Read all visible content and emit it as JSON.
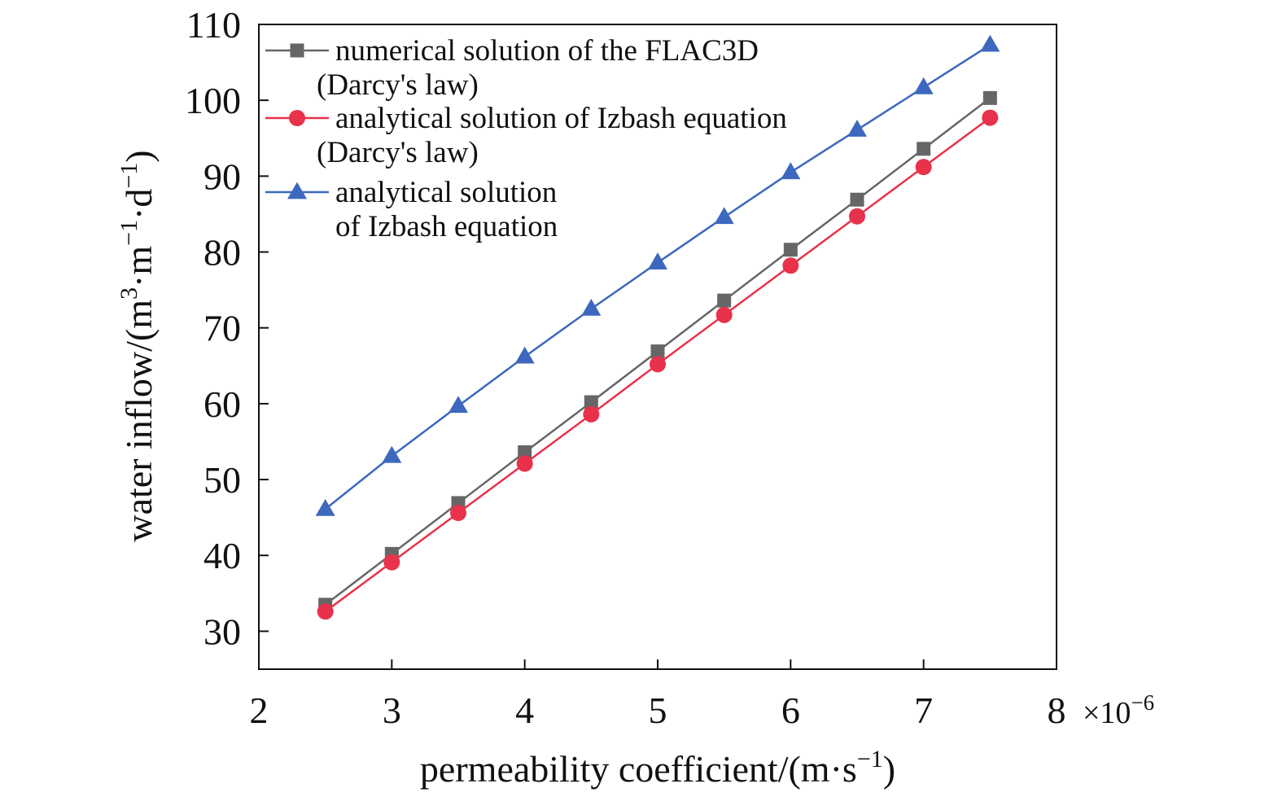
{
  "chart_data": {
    "type": "line",
    "title": "",
    "x_multiplier_label": "×10",
    "x_multiplier_exponent": "−6",
    "xlabel": {
      "prefix": "permeability coefficient/(m·s",
      "sup": "−1",
      "suffix": ")"
    },
    "ylabel": {
      "prefix": "water inflow/(m",
      "sup1": "3",
      "mid1": "·m",
      "sup2": "−1",
      "mid2": "·d",
      "sup3": "−1",
      "suffix": ")"
    },
    "xlim": [
      2,
      8
    ],
    "ylim": [
      25,
      110
    ],
    "x_ticks": [
      2,
      3,
      4,
      5,
      6,
      7,
      8
    ],
    "y_ticks": [
      30,
      40,
      50,
      60,
      70,
      80,
      90,
      100,
      110
    ],
    "x": [
      2.5,
      3,
      3.5,
      4,
      4.5,
      5,
      5.5,
      6,
      6.5,
      7,
      7.5
    ],
    "legend_position": "top-left",
    "grid": false,
    "series": [
      {
        "name_lines": [
          "numerical solution of the FLAC3D",
          "(Darcy's law)"
        ],
        "marker": "square",
        "color": "#666666",
        "values": [
          33.5,
          40.2,
          46.9,
          53.6,
          60.2,
          66.9,
          73.6,
          80.3,
          86.9,
          93.6,
          100.3
        ]
      },
      {
        "name_lines": [
          "analytical solution of Izbash equation",
          "(Darcy's law)"
        ],
        "marker": "circle",
        "color": "#e8324b",
        "values": [
          32.6,
          39.1,
          45.6,
          52.1,
          58.6,
          65.2,
          71.7,
          78.2,
          84.7,
          91.2,
          97.7
        ]
      },
      {
        "name_lines": [
          "analytical solution",
          "of Izbash equation"
        ],
        "marker": "triangle",
        "color": "#3d68bd",
        "values": [
          46.1,
          53.1,
          59.7,
          66.2,
          72.5,
          78.6,
          84.6,
          90.5,
          96.1,
          101.7,
          107.3
        ]
      }
    ]
  }
}
